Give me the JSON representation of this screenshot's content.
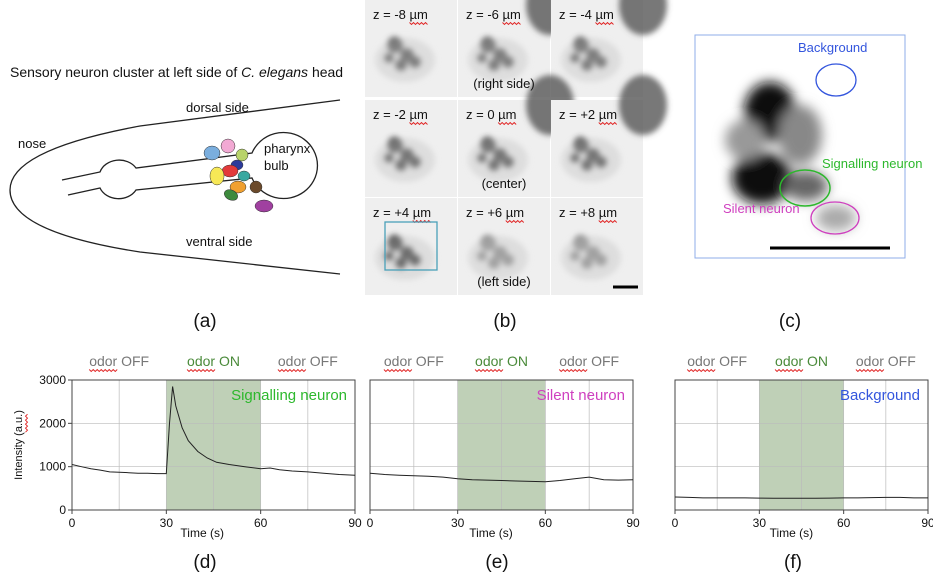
{
  "figure": {
    "panel_labels": [
      "(a)",
      "(b)",
      "(c)",
      "(d)",
      "(e)",
      "(f)"
    ],
    "diagram": {
      "title_parts": [
        "Sensory neuron cluster at left side of ",
        "C. elegans",
        " head"
      ],
      "dorsal": "dorsal side",
      "nose": "nose",
      "pharynx": "pharynx",
      "bulb": "bulb",
      "ventral": "ventral side"
    },
    "zstack": {
      "z_labels": [
        "z = -8 µm",
        "z = -6 µm",
        "z = -4 µm",
        "z = -2 µm",
        "z = 0 µm",
        "z = +2 µm",
        "z = +4 µm",
        "z = +6 µm",
        "z = +8 µm"
      ],
      "side_labels": [
        "(right side)",
        "(center)",
        "(left side)"
      ]
    },
    "roi": {
      "labels": [
        "Background",
        "Signalling neuron",
        "Silent neuron"
      ]
    }
  },
  "chart_data": [
    {
      "type": "line",
      "header": [
        "odor OFF",
        "odor ON",
        "odor OFF"
      ],
      "annotation": "Signalling neuron",
      "annotation_color": "#2db82d",
      "ylabel": "Intensity (a.u.)",
      "xlabel": "Time (s)",
      "x": [
        0,
        3,
        6,
        9,
        12,
        15,
        18,
        21,
        24,
        27,
        30,
        31,
        32,
        33,
        35,
        37,
        40,
        43,
        46,
        50,
        55,
        60,
        63,
        66,
        70,
        75,
        80,
        85,
        90
      ],
      "series": [
        {
          "color": "#222",
          "values": [
            1050,
            1000,
            950,
            920,
            880,
            870,
            860,
            850,
            850,
            840,
            840,
            2000,
            2850,
            2400,
            1900,
            1600,
            1350,
            1200,
            1100,
            1050,
            1000,
            950,
            970,
            930,
            900,
            880,
            850,
            820,
            800
          ]
        }
      ],
      "xlim": [
        0,
        90
      ],
      "ylim": [
        0,
        3000
      ],
      "xticks": [
        0,
        30,
        60,
        90
      ],
      "yticks": [
        0,
        1000,
        2000,
        3000
      ],
      "xgrid": [
        15,
        30,
        45,
        60,
        75
      ],
      "shade": [
        30,
        60
      ],
      "shade_color": "#a9c09f",
      "grid": true
    },
    {
      "type": "line",
      "header": [
        "odor OFF",
        "odor ON",
        "odor OFF"
      ],
      "annotation": "Silent neuron",
      "annotation_color": "#cf3fbf",
      "xlabel": "Time (s)",
      "x": [
        0,
        5,
        10,
        15,
        20,
        25,
        30,
        35,
        40,
        45,
        50,
        55,
        60,
        65,
        70,
        75,
        80,
        85,
        90
      ],
      "series": [
        {
          "color": "#222",
          "values": [
            850,
            820,
            800,
            790,
            780,
            760,
            720,
            700,
            690,
            680,
            670,
            660,
            650,
            680,
            720,
            760,
            700,
            690,
            700
          ]
        }
      ],
      "xlim": [
        0,
        90
      ],
      "ylim": [
        0,
        3000
      ],
      "xticks": [
        0,
        30,
        60,
        90
      ],
      "yticks_grid": [
        1000,
        2000
      ],
      "xgrid": [
        15,
        30,
        45,
        60,
        75
      ],
      "shade": [
        30,
        60
      ],
      "shade_color": "#a9c09f",
      "grid": true
    },
    {
      "type": "line",
      "header": [
        "odor OFF",
        "odor ON",
        "odor OFF"
      ],
      "annotation": "Background",
      "annotation_color": "#3355dd",
      "xlabel": "Time (s)",
      "x": [
        0,
        5,
        10,
        15,
        20,
        25,
        30,
        35,
        40,
        45,
        50,
        55,
        60,
        65,
        70,
        75,
        80,
        85,
        90
      ],
      "series": [
        {
          "color": "#222",
          "values": [
            300,
            290,
            280,
            280,
            280,
            280,
            275,
            270,
            270,
            270,
            270,
            275,
            280,
            280,
            285,
            290,
            290,
            280,
            280
          ]
        }
      ],
      "xlim": [
        0,
        90
      ],
      "ylim": [
        0,
        3000
      ],
      "xticks": [
        0,
        30,
        60,
        90
      ],
      "yticks_grid": [
        1000,
        2000
      ],
      "xgrid": [
        15,
        30,
        45,
        60,
        75
      ],
      "shade": [
        30,
        60
      ],
      "shade_color": "#a9c09f",
      "grid": true
    }
  ]
}
